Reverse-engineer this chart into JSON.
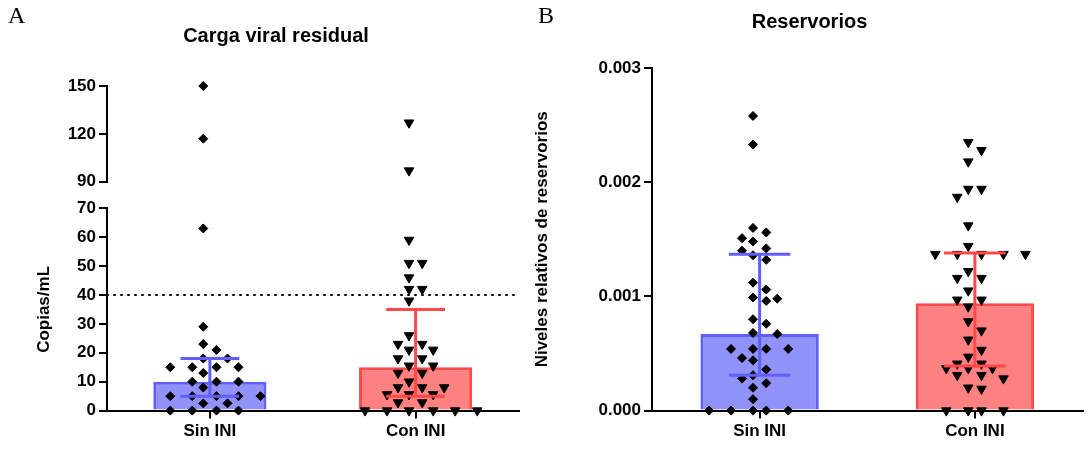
{
  "chart_data": [
    {
      "type": "scatter",
      "title": "Carga viral residual",
      "annotations": [
        "A"
      ],
      "categories": [
        "Sin INI",
        "Con INI"
      ],
      "tick_labels": "y",
      "ylim": [
        90,
        150
      ],
      "yticks": [
        90,
        120,
        150
      ],
      "series": [
        {
          "marker": "diamond",
          "color": "#000000",
          "x": [
            "Sin INI",
            "Sin INI"
          ],
          "values": [
            150,
            117
          ]
        },
        {
          "marker": "triangle",
          "color": "#000000",
          "x": [
            "Con INI",
            "Con INI"
          ],
          "values": [
            127,
            97
          ]
        }
      ]
    },
    {
      "type": "bar",
      "ylabel": "Copias/mL",
      "categories": [
        "Sin INI",
        "Con INI"
      ],
      "ylim": [
        0,
        70
      ],
      "yticks": [
        0,
        10,
        20,
        30,
        40,
        50,
        60,
        70
      ],
      "ref_lines": [
        {
          "axis": "y",
          "value": 40,
          "line_style": "dotted",
          "color": "#000000"
        }
      ],
      "series": [
        {
          "values": [
            10,
            15
          ],
          "colors": [
            "#6060f8",
            "#ff4848"
          ],
          "errors": [
            [
              5,
              18
            ],
            [
              5,
              35
            ]
          ]
        },
        {
          "type": "scatter",
          "marker": "diamond",
          "color": "#000000",
          "x": [
            "Sin INI",
            "Sin INI",
            "Sin INI",
            "Sin INI",
            "Sin INI",
            "Sin INI",
            "Sin INI",
            "Sin INI",
            "Sin INI",
            "Sin INI",
            "Sin INI",
            "Sin INI",
            "Sin INI",
            "Sin INI",
            "Sin INI",
            "Sin INI",
            "Sin INI",
            "Sin INI",
            "Sin INI",
            "Sin INI",
            "Sin INI",
            "Sin INI",
            "Sin INI",
            "Sin INI",
            "Sin INI",
            "Sin INI"
          ],
          "values": [
            63,
            29,
            23,
            21,
            18,
            18,
            15,
            15,
            15,
            15,
            13,
            10,
            10,
            10,
            8,
            5,
            5,
            5,
            5,
            5,
            2.5,
            2.5,
            0,
            0,
            0,
            0
          ]
        },
        {
          "type": "scatter",
          "marker": "triangle",
          "color": "#000000",
          "x": [
            "Con INI",
            "Con INI",
            "Con INI",
            "Con INI",
            "Con INI",
            "Con INI",
            "Con INI",
            "Con INI",
            "Con INI",
            "Con INI",
            "Con INI",
            "Con INI",
            "Con INI",
            "Con INI",
            "Con INI",
            "Con INI",
            "Con INI",
            "Con INI",
            "Con INI",
            "Con INI",
            "Con INI",
            "Con INI",
            "Con INI",
            "Con INI",
            "Con INI",
            "Con INI",
            "Con INI",
            "Con INI",
            "Con INI",
            "Con INI",
            "Con INI",
            "Con INI",
            "Con INI"
          ],
          "values": [
            59,
            51,
            51,
            46,
            42,
            42,
            38,
            26,
            23,
            23,
            21,
            21,
            18,
            18,
            15.5,
            15.5,
            13,
            13,
            10,
            8,
            8,
            8,
            5.6,
            5.6,
            5.6,
            2.8,
            2.8,
            0,
            0,
            0,
            0,
            0,
            0
          ]
        }
      ]
    },
    {
      "type": "bar",
      "title": "Reservorios",
      "annotations": [
        "B"
      ],
      "ylabel": "Niveles relativos de reservorios",
      "categories": [
        "Sin INI",
        "Con INI"
      ],
      "ylim": [
        0,
        0.003
      ],
      "yticks": [
        {
          "value": 0,
          "label": "0.000"
        },
        {
          "value": 0.001,
          "label": "0.001"
        },
        {
          "value": 0.002,
          "label": "0.002"
        },
        {
          "value": 0.003,
          "label": "0.003"
        }
      ],
      "series": [
        {
          "values": [
            0.00067,
            0.00094
          ],
          "colors": [
            "#6060f8",
            "#ff4848"
          ],
          "errors": [
            [
              0.00031,
              0.00137
            ],
            [
              0.00039,
              0.00138
            ]
          ]
        },
        {
          "type": "scatter",
          "marker": "diamond",
          "color": "#000000",
          "x": [
            "Sin INI",
            "Sin INI",
            "Sin INI",
            "Sin INI",
            "Sin INI",
            "Sin INI",
            "Sin INI",
            "Sin INI",
            "Sin INI",
            "Sin INI",
            "Sin INI",
            "Sin INI",
            "Sin INI",
            "Sin INI",
            "Sin INI",
            "Sin INI",
            "Sin INI",
            "Sin INI",
            "Sin INI",
            "Sin INI",
            "Sin INI",
            "Sin INI",
            "Sin INI",
            "Sin INI",
            "Sin INI",
            "Sin INI",
            "Sin INI",
            "Sin INI",
            "Sin INI",
            "Sin INI",
            "Sin INI",
            "Sin INI",
            "Sin INI",
            "Sin INI",
            "Sin INI",
            "Sin INI"
          ],
          "values": [
            0.00258,
            0.00233,
            0.0016,
            0.00156,
            0.00151,
            0.00148,
            0.00142,
            0.0014,
            0.00136,
            0.00132,
            0.00112,
            0.00106,
            0.00099,
            0.00098,
            0.00096,
            0.0008,
            0.00076,
            0.00068,
            0.00067,
            0.00054,
            0.00054,
            0.00054,
            0.00054,
            0.00046,
            0.00044,
            0.00036,
            0.00031,
            0.00028,
            0.00024,
            0.0002,
            0.0001,
            0,
            0,
            0,
            0,
            0
          ]
        },
        {
          "type": "scatter",
          "marker": "triangle",
          "color": "#000000",
          "x": [
            "Con INI",
            "Con INI",
            "Con INI",
            "Con INI",
            "Con INI",
            "Con INI",
            "Con INI",
            "Con INI",
            "Con INI",
            "Con INI",
            "Con INI",
            "Con INI",
            "Con INI",
            "Con INI",
            "Con INI",
            "Con INI",
            "Con INI",
            "Con INI",
            "Con INI",
            "Con INI",
            "Con INI",
            "Con INI",
            "Con INI",
            "Con INI",
            "Con INI",
            "Con INI",
            "Con INI",
            "Con INI",
            "Con INI",
            "Con INI",
            "Con INI",
            "Con INI",
            "Con INI",
            "Con INI",
            "Con INI",
            "Con INI",
            "Con INI",
            "Con INI",
            "Con INI"
          ],
          "values": [
            0.00235,
            0.00228,
            0.00218,
            0.00194,
            0.00194,
            0.00187,
            0.00162,
            0.00144,
            0.00137,
            0.00137,
            0.00137,
            0.00137,
            0.00137,
            0.00122,
            0.00116,
            0.00116,
            0.00105,
            0.00097,
            0.00097,
            0.00091,
            0.00078,
            0.0007,
            0.00062,
            0.00053,
            0.00047,
            0.00041,
            0.00041,
            0.00037,
            0.00037,
            0.00037,
            0.00031,
            0.00031,
            0.00028,
            0.0002,
            0.00019,
            0,
            0,
            0,
            0
          ]
        }
      ]
    }
  ]
}
